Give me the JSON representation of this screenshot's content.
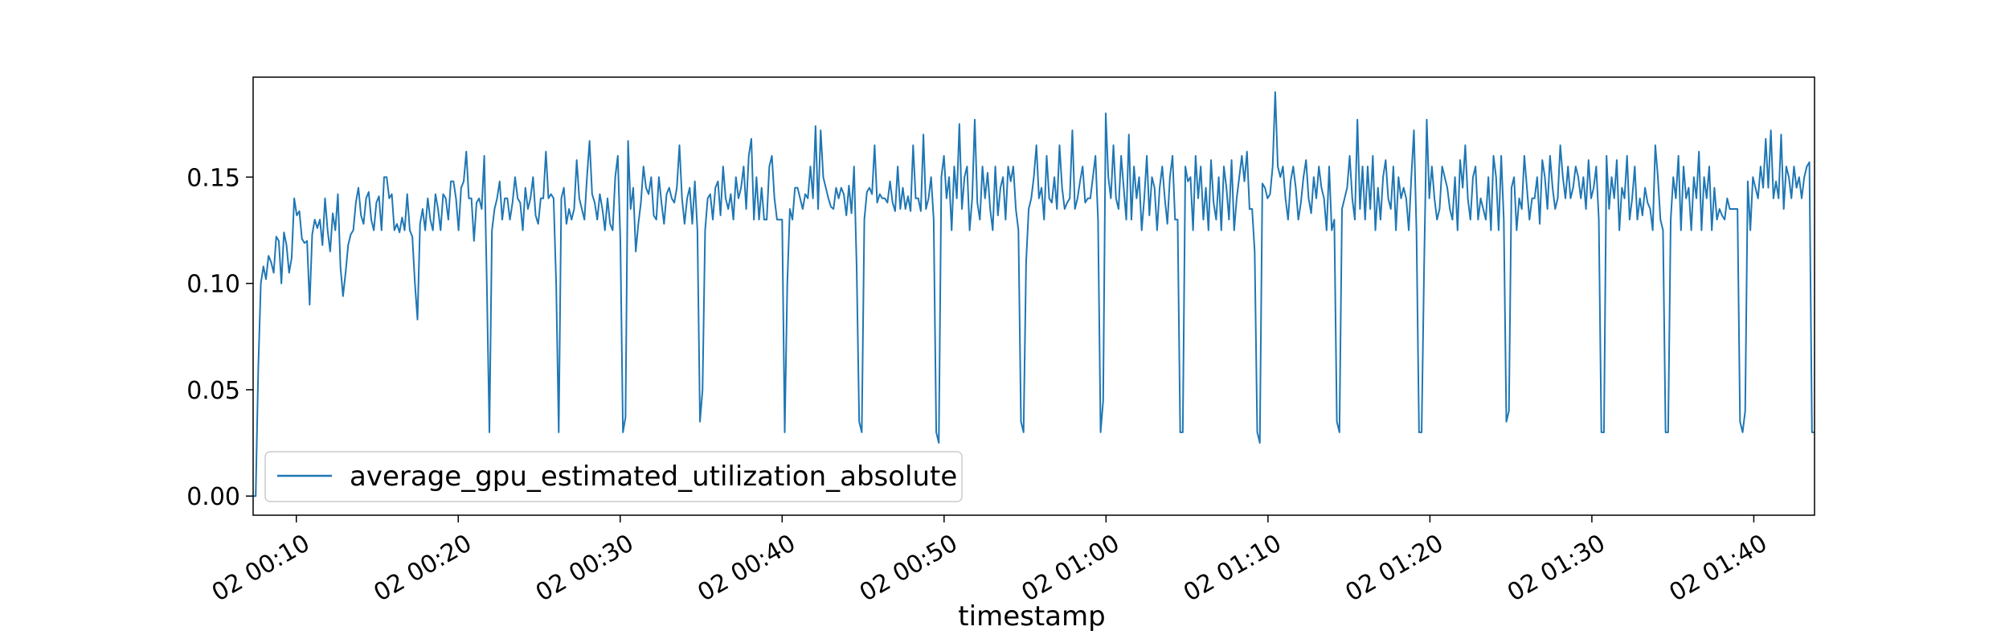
{
  "chart_data": {
    "type": "line",
    "title": "",
    "xlabel": "timestamp",
    "ylabel": "",
    "x_start": "02 00:07:20",
    "x_end": "02 01:43:45",
    "xlim": [
      "02 00:07:20",
      "02 01:43:45"
    ],
    "ylim": [
      -0.009,
      0.197
    ],
    "grid": false,
    "legend_position": "lower-left",
    "x_ticks": [
      "02 00:10",
      "02 00:20",
      "02 00:30",
      "02 00:40",
      "02 00:50",
      "02 01:00",
      "02 01:10",
      "02 01:20",
      "02 01:30",
      "02 01:40"
    ],
    "y_ticks": [
      "0.00",
      "0.05",
      "0.10",
      "0.15"
    ],
    "series": [
      {
        "name": "average_gpu_estimated_utilization_absolute",
        "color": "#1f77b4",
        "values": [
          0.0,
          0.0,
          0.06,
          0.1,
          0.108,
          0.102,
          0.113,
          0.11,
          0.105,
          0.122,
          0.12,
          0.1,
          0.124,
          0.118,
          0.105,
          0.112,
          0.14,
          0.132,
          0.134,
          0.121,
          0.119,
          0.12,
          0.09,
          0.123,
          0.13,
          0.126,
          0.13,
          0.118,
          0.14,
          0.125,
          0.115,
          0.133,
          0.125,
          0.142,
          0.108,
          0.094,
          0.105,
          0.118,
          0.123,
          0.125,
          0.138,
          0.145,
          0.132,
          0.128,
          0.14,
          0.143,
          0.13,
          0.125,
          0.138,
          0.141,
          0.125,
          0.15,
          0.15,
          0.14,
          0.142,
          0.125,
          0.128,
          0.124,
          0.131,
          0.125,
          0.142,
          0.125,
          0.122,
          0.1,
          0.083,
          0.128,
          0.135,
          0.125,
          0.14,
          0.13,
          0.125,
          0.142,
          0.135,
          0.125,
          0.142,
          0.14,
          0.13,
          0.148,
          0.148,
          0.14,
          0.125,
          0.145,
          0.148,
          0.162,
          0.14,
          0.14,
          0.12,
          0.138,
          0.14,
          0.135,
          0.16,
          0.1,
          0.03,
          0.125,
          0.135,
          0.14,
          0.148,
          0.13,
          0.14,
          0.14,
          0.13,
          0.138,
          0.15,
          0.14,
          0.138,
          0.125,
          0.145,
          0.135,
          0.14,
          0.15,
          0.132,
          0.128,
          0.14,
          0.14,
          0.162,
          0.14,
          0.142,
          0.14,
          0.1,
          0.03,
          0.14,
          0.145,
          0.128,
          0.135,
          0.13,
          0.135,
          0.158,
          0.14,
          0.135,
          0.13,
          0.15,
          0.167,
          0.142,
          0.138,
          0.13,
          0.142,
          0.135,
          0.125,
          0.14,
          0.128,
          0.125,
          0.15,
          0.16,
          0.12,
          0.03,
          0.037,
          0.167,
          0.135,
          0.145,
          0.115,
          0.128,
          0.138,
          0.155,
          0.145,
          0.142,
          0.15,
          0.132,
          0.13,
          0.15,
          0.138,
          0.128,
          0.142,
          0.145,
          0.14,
          0.138,
          0.145,
          0.165,
          0.14,
          0.128,
          0.14,
          0.145,
          0.128,
          0.148,
          0.125,
          0.035,
          0.05,
          0.125,
          0.14,
          0.142,
          0.13,
          0.145,
          0.148,
          0.132,
          0.155,
          0.14,
          0.135,
          0.142,
          0.13,
          0.15,
          0.14,
          0.145,
          0.155,
          0.135,
          0.16,
          0.168,
          0.13,
          0.15,
          0.13,
          0.145,
          0.13,
          0.13,
          0.155,
          0.16,
          0.14,
          0.13,
          0.13,
          0.13,
          0.03,
          0.1,
          0.135,
          0.13,
          0.145,
          0.145,
          0.14,
          0.135,
          0.142,
          0.14,
          0.155,
          0.14,
          0.174,
          0.135,
          0.172,
          0.15,
          0.145,
          0.14,
          0.136,
          0.135,
          0.145,
          0.14,
          0.145,
          0.142,
          0.132,
          0.146,
          0.133,
          0.155,
          0.108,
          0.035,
          0.03,
          0.13,
          0.143,
          0.145,
          0.142,
          0.165,
          0.138,
          0.142,
          0.14,
          0.14,
          0.138,
          0.148,
          0.138,
          0.134,
          0.155,
          0.135,
          0.145,
          0.135,
          0.141,
          0.134,
          0.165,
          0.14,
          0.14,
          0.134,
          0.17,
          0.135,
          0.14,
          0.15,
          0.13,
          0.03,
          0.025,
          0.15,
          0.16,
          0.14,
          0.15,
          0.125,
          0.155,
          0.14,
          0.175,
          0.135,
          0.15,
          0.155,
          0.125,
          0.14,
          0.177,
          0.138,
          0.13,
          0.155,
          0.14,
          0.152,
          0.135,
          0.125,
          0.155,
          0.132,
          0.145,
          0.15,
          0.13,
          0.155,
          0.148,
          0.155,
          0.135,
          0.125,
          0.035,
          0.03,
          0.11,
          0.135,
          0.14,
          0.15,
          0.165,
          0.14,
          0.145,
          0.13,
          0.16,
          0.14,
          0.138,
          0.15,
          0.135,
          0.165,
          0.145,
          0.135,
          0.138,
          0.14,
          0.172,
          0.135,
          0.14,
          0.148,
          0.155,
          0.138,
          0.14,
          0.14,
          0.15,
          0.16,
          0.13,
          0.03,
          0.045,
          0.18,
          0.15,
          0.14,
          0.165,
          0.14,
          0.135,
          0.16,
          0.145,
          0.13,
          0.17,
          0.13,
          0.155,
          0.14,
          0.15,
          0.125,
          0.14,
          0.16,
          0.132,
          0.15,
          0.145,
          0.125,
          0.145,
          0.155,
          0.14,
          0.128,
          0.15,
          0.16,
          0.13,
          0.13,
          0.03,
          0.03,
          0.155,
          0.148,
          0.15,
          0.125,
          0.16,
          0.14,
          0.155,
          0.13,
          0.145,
          0.125,
          0.158,
          0.138,
          0.13,
          0.15,
          0.125,
          0.155,
          0.145,
          0.13,
          0.158,
          0.125,
          0.14,
          0.15,
          0.16,
          0.148,
          0.162,
          0.135,
          0.135,
          0.115,
          0.03,
          0.025,
          0.147,
          0.145,
          0.14,
          0.142,
          0.155,
          0.19,
          0.155,
          0.15,
          0.155,
          0.14,
          0.13,
          0.148,
          0.155,
          0.145,
          0.13,
          0.138,
          0.15,
          0.158,
          0.14,
          0.133,
          0.15,
          0.14,
          0.155,
          0.145,
          0.14,
          0.125,
          0.155,
          0.125,
          0.13,
          0.035,
          0.03,
          0.135,
          0.14,
          0.145,
          0.16,
          0.14,
          0.13,
          0.177,
          0.135,
          0.155,
          0.13,
          0.155,
          0.135,
          0.16,
          0.125,
          0.145,
          0.13,
          0.15,
          0.158,
          0.14,
          0.135,
          0.155,
          0.125,
          0.15,
          0.14,
          0.145,
          0.14,
          0.125,
          0.15,
          0.172,
          0.125,
          0.03,
          0.03,
          0.11,
          0.177,
          0.14,
          0.155,
          0.14,
          0.13,
          0.135,
          0.155,
          0.15,
          0.145,
          0.135,
          0.13,
          0.15,
          0.125,
          0.158,
          0.145,
          0.165,
          0.14,
          0.13,
          0.15,
          0.155,
          0.13,
          0.14,
          0.135,
          0.13,
          0.15,
          0.125,
          0.16,
          0.15,
          0.125,
          0.16,
          0.13,
          0.035,
          0.04,
          0.145,
          0.15,
          0.125,
          0.14,
          0.135,
          0.16,
          0.145,
          0.13,
          0.14,
          0.14,
          0.15,
          0.128,
          0.158,
          0.15,
          0.135,
          0.16,
          0.145,
          0.135,
          0.14,
          0.165,
          0.15,
          0.14,
          0.155,
          0.14,
          0.145,
          0.155,
          0.15,
          0.14,
          0.15,
          0.135,
          0.158,
          0.14,
          0.145,
          0.155,
          0.13,
          0.03,
          0.03,
          0.16,
          0.135,
          0.15,
          0.14,
          0.158,
          0.125,
          0.145,
          0.14,
          0.16,
          0.13,
          0.14,
          0.155,
          0.13,
          0.14,
          0.132,
          0.145,
          0.138,
          0.135,
          0.125,
          0.165,
          0.15,
          0.13,
          0.125,
          0.03,
          0.03,
          0.13,
          0.15,
          0.14,
          0.16,
          0.125,
          0.155,
          0.14,
          0.145,
          0.125,
          0.15,
          0.14,
          0.162,
          0.125,
          0.15,
          0.14,
          0.155,
          0.125,
          0.145,
          0.13,
          0.135,
          0.132,
          0.13,
          0.14,
          0.135,
          0.135,
          0.135,
          0.135,
          0.035,
          0.03,
          0.04,
          0.148,
          0.125,
          0.15,
          0.145,
          0.14,
          0.155,
          0.145,
          0.168,
          0.145,
          0.172,
          0.14,
          0.148,
          0.14,
          0.17,
          0.135,
          0.155,
          0.15,
          0.14,
          0.155,
          0.145,
          0.15,
          0.14,
          0.15,
          0.155,
          0.157,
          0.03,
          0.03
        ]
      }
    ]
  }
}
